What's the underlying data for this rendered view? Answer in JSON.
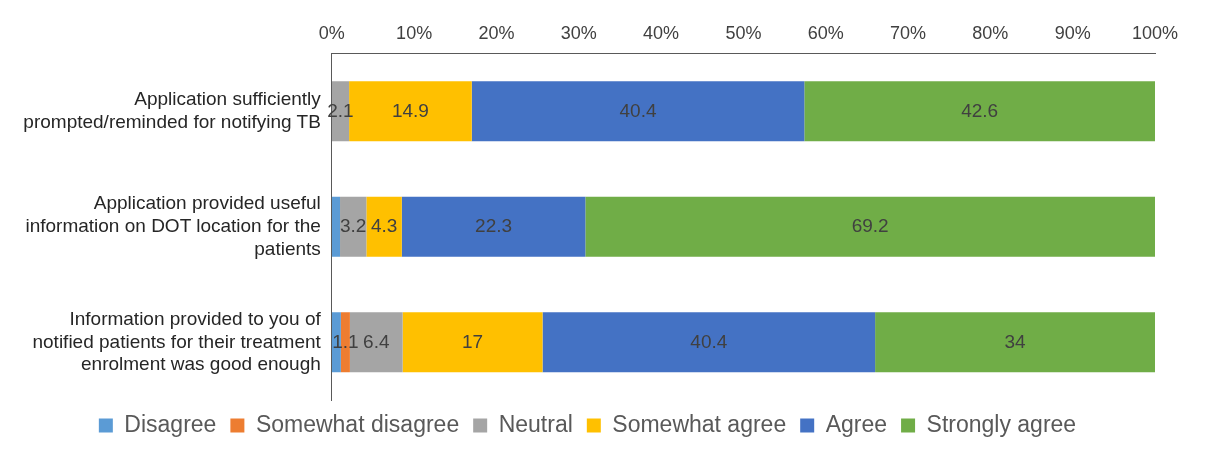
{
  "chart_data": {
    "type": "bar",
    "orientation": "horizontal",
    "stacked": true,
    "categories": [
      "Application sufficiently prompted/reminded for notifying TB",
      "Application provided useful information on DOT location for the patients",
      "Information provided to you of notified patients for their treatment enrolment was good enough"
    ],
    "series": [
      {
        "name": "Disagree",
        "color": "#5b9bd5",
        "values": [
          0,
          1.0,
          1.1
        ],
        "value_labels": [
          null,
          null,
          null
        ]
      },
      {
        "name": "Somewhat disagree",
        "color": "#ed7d31",
        "values": [
          0,
          0,
          1.1
        ],
        "value_labels": [
          null,
          null,
          "1.1"
        ]
      },
      {
        "name": "Neutral",
        "color": "#a5a5a5",
        "values": [
          2.1,
          3.2,
          6.4
        ],
        "value_labels": [
          "2.1",
          "3.2",
          "6.4"
        ]
      },
      {
        "name": "Somewhat agree",
        "color": "#ffc000",
        "values": [
          14.9,
          4.3,
          17
        ],
        "value_labels": [
          "14.9",
          "4.3",
          "17"
        ]
      },
      {
        "name": "Agree",
        "color": "#4472c4",
        "values": [
          40.4,
          22.3,
          40.4
        ],
        "value_labels": [
          "40.4",
          "22.3",
          "40.4"
        ]
      },
      {
        "name": "Strongly agree",
        "color": "#70ad47",
        "values": [
          42.6,
          69.2,
          34
        ],
        "value_labels": [
          "42.6",
          "69.2",
          "34"
        ]
      }
    ],
    "xlim": [
      0,
      100
    ],
    "xticks": [
      {
        "value": 0,
        "label": "0%"
      },
      {
        "value": 10,
        "label": "10%"
      },
      {
        "value": 20,
        "label": "20%"
      },
      {
        "value": 30,
        "label": "30%"
      },
      {
        "value": 40,
        "label": "40%"
      },
      {
        "value": 50,
        "label": "50%"
      },
      {
        "value": 60,
        "label": "60%"
      },
      {
        "value": 70,
        "label": "70%"
      },
      {
        "value": 80,
        "label": "80%"
      },
      {
        "value": 90,
        "label": "90%"
      },
      {
        "value": 100,
        "label": "100%"
      }
    ],
    "grid": false,
    "legend": "bottom"
  }
}
